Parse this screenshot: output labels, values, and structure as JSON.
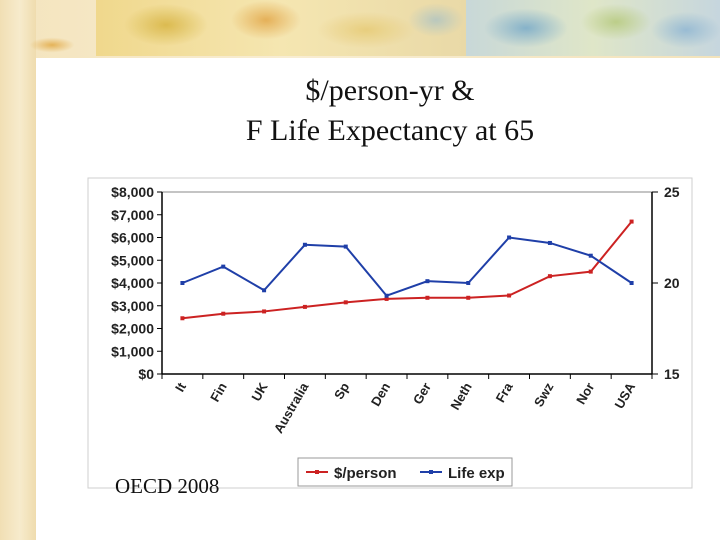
{
  "slide": {
    "title_line1": "$/person-yr &",
    "title_line2": "F Life Expectancy at 65",
    "source": "OECD 2008"
  },
  "colors": {
    "spending": "#cc2222",
    "life": "#1f3fa8",
    "axis": "#000000",
    "plot_border": "#888888",
    "background": "#ffffff"
  },
  "chart_data": {
    "type": "line",
    "categories": [
      "It",
      "Fin",
      "UK",
      "Australia",
      "Sp",
      "Den",
      "Ger",
      "Neth",
      "Fra",
      "Swz",
      "Nor",
      "USA"
    ],
    "series": [
      {
        "name": "$/person",
        "axis": "left",
        "values": [
          2450,
          2650,
          2750,
          2950,
          3150,
          3300,
          3350,
          3350,
          3450,
          4300,
          4500,
          6700
        ]
      },
      {
        "name": "Life exp",
        "axis": "right",
        "values": [
          20,
          20.9,
          19.6,
          22.1,
          22.0,
          19.3,
          20.1,
          20.0,
          22.5,
          22.2,
          21.5,
          20.0
        ]
      }
    ],
    "y_left": {
      "min": 0,
      "max": 8000,
      "step": 1000,
      "tick_labels": [
        "$0",
        "$1,000",
        "$2,000",
        "$3,000",
        "$4,000",
        "$5,000",
        "$6,000",
        "$7,000",
        "$8,000"
      ]
    },
    "y_right": {
      "min": 15,
      "max": 25,
      "ticks": [
        15,
        20,
        25
      ]
    },
    "grid": false,
    "legend": {
      "placement": "bottom",
      "entries": [
        "$/person",
        "Life exp"
      ]
    }
  }
}
